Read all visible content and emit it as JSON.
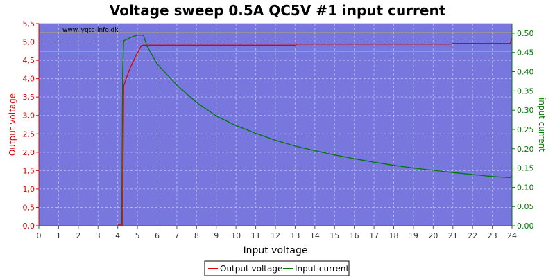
{
  "colors": {
    "plot_background": "#7777dd",
    "grid": "#b6b6ee",
    "left_axis": "#dd0000",
    "right_axis": "#007700",
    "reference_lines": "#e0e000"
  },
  "chart_data": {
    "type": "line",
    "title": "Voltage sweep 0.5A QC5V #1 input current",
    "watermark": "www.lygte-info.dk",
    "xlabel": "Input voltage",
    "ylabel_left": "Output voltage",
    "ylabel_right": "input current",
    "xlim": [
      0,
      24
    ],
    "ylim_left": [
      0,
      5.5
    ],
    "ylim_right": [
      0,
      0.525
    ],
    "x_ticks": [
      "0",
      "1",
      "2",
      "3",
      "4",
      "5",
      "6",
      "7",
      "8",
      "9",
      "10",
      "11",
      "12",
      "13",
      "14",
      "15",
      "16",
      "17",
      "18",
      "19",
      "20",
      "21",
      "22",
      "23",
      "24"
    ],
    "y_left_ticks": [
      "0,0",
      "0,5",
      "1,0",
      "1,5",
      "2,0",
      "2,5",
      "3,0",
      "3,5",
      "4,0",
      "4,5",
      "5,0",
      "5,5"
    ],
    "y_right_ticks": [
      "0.00",
      "0.05",
      "0.10",
      "0.15",
      "0.20",
      "0.25",
      "0.30",
      "0.35",
      "0.40",
      "0.45",
      "0.50"
    ],
    "grid": true,
    "reference_lines_left": [
      5.25,
      4.75
    ],
    "legend": {
      "placement": "bottom-center",
      "entries": [
        "Output voltage",
        "Input current"
      ]
    },
    "series": [
      {
        "name": "Output voltage",
        "axis": "left",
        "color": "#dd0000",
        "x": [
          4.0,
          4.25,
          4.3,
          4.4,
          4.6,
          4.9,
          5.2,
          5.3,
          6,
          8,
          10,
          12,
          13,
          13.1,
          16,
          18,
          20,
          20.9,
          21,
          22,
          23,
          23.9,
          24
        ],
        "y": [
          0.02,
          0.02,
          3.8,
          3.95,
          4.25,
          4.6,
          4.9,
          4.91,
          4.91,
          4.91,
          4.91,
          4.91,
          4.91,
          4.94,
          4.94,
          4.94,
          4.94,
          4.94,
          4.96,
          4.96,
          4.96,
          4.96,
          5.1
        ]
      },
      {
        "name": "Input current",
        "axis": "right",
        "color": "#007700",
        "x": [
          4.0,
          4.2,
          4.25,
          4.3,
          4.7,
          5.0,
          5.3,
          5.5,
          6,
          7,
          8,
          9,
          10,
          11,
          12,
          13,
          14,
          15,
          16,
          17,
          18,
          19,
          20,
          21,
          22,
          23,
          23.9,
          24
        ],
        "y": [
          0.0,
          0.0,
          0.4,
          0.48,
          0.49,
          0.495,
          0.495,
          0.465,
          0.42,
          0.365,
          0.32,
          0.285,
          0.26,
          0.24,
          0.222,
          0.207,
          0.195,
          0.184,
          0.174,
          0.165,
          0.157,
          0.15,
          0.144,
          0.138,
          0.133,
          0.128,
          0.125,
          0.13
        ]
      }
    ]
  }
}
